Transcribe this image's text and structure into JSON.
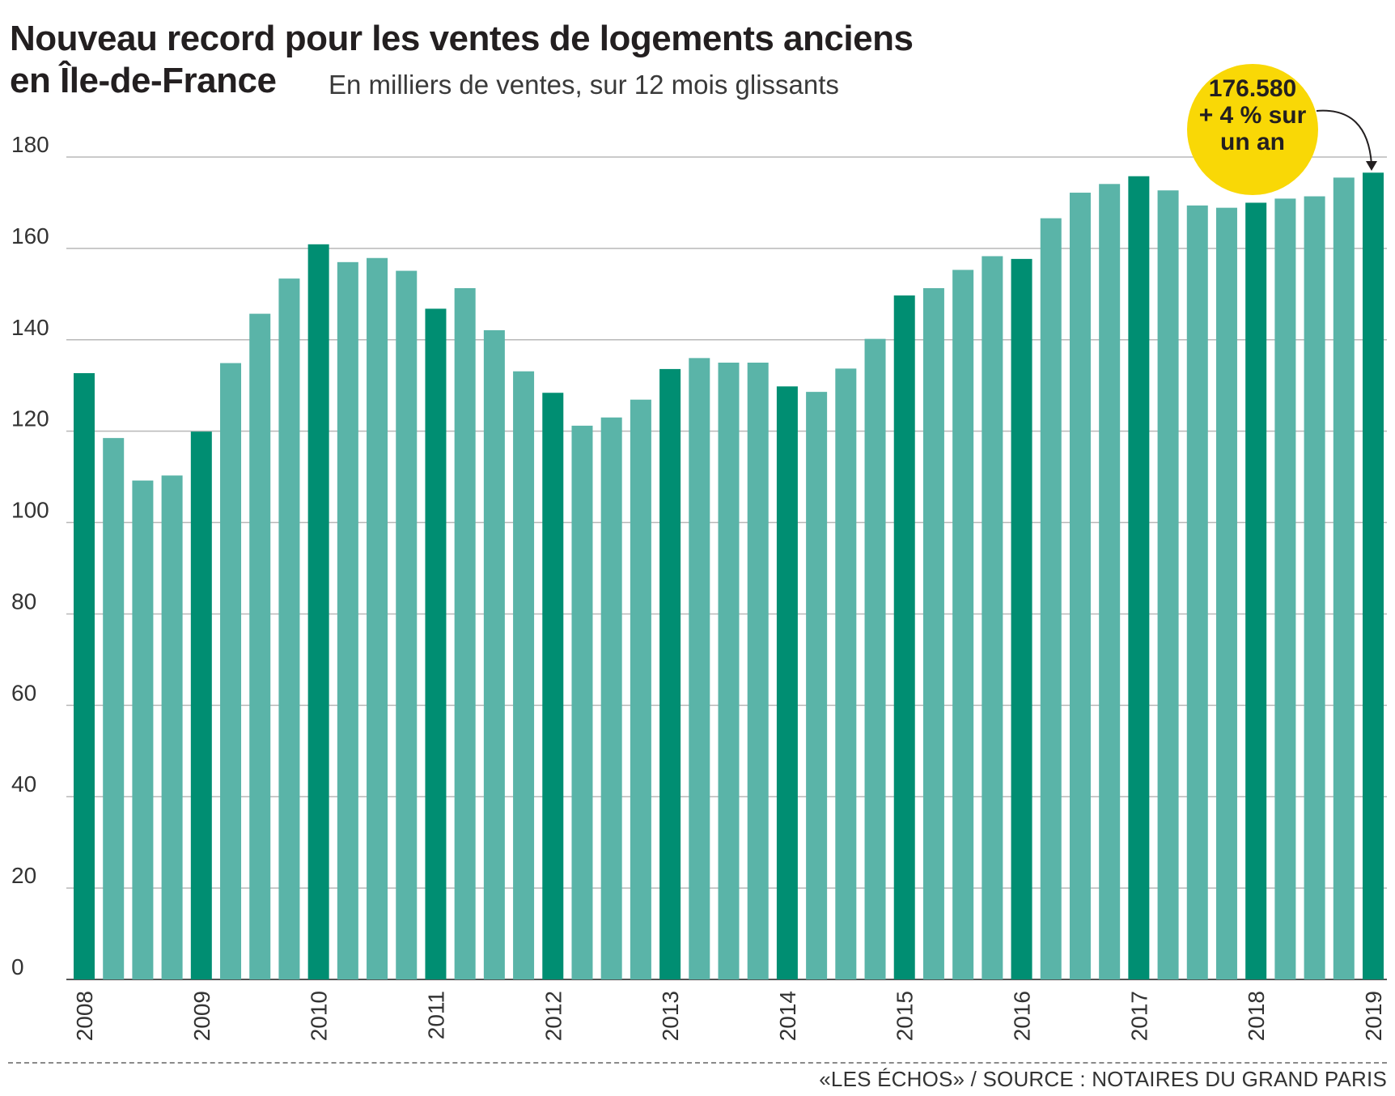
{
  "title": {
    "line1": "Nouveau record pour les ventes de logements anciens",
    "line2": "en Île-de-France"
  },
  "subtitle": "En milliers de ventes, sur 12 mois glissants",
  "callout": {
    "value": "176.580",
    "line2": "+ 4 % sur",
    "line3": "un an"
  },
  "footer": {
    "publication": "«LES ÉCHOS»",
    "source": "/ SOURCE : NOTAIRES DU GRAND PARIS"
  },
  "colors": {
    "bar_dark": "#008e72",
    "bar_light": "#5ab4a8",
    "callout": "#f9d806",
    "grid": "#b8b8b8"
  },
  "chart_data": {
    "type": "bar",
    "title": "Nouveau record pour les ventes de logements anciens en Île-de-France",
    "subtitle": "En milliers de ventes, sur 12 mois glissants",
    "ylim": [
      0,
      180
    ],
    "yticks": [
      0,
      20,
      40,
      60,
      80,
      100,
      120,
      140,
      160,
      180
    ],
    "grid": true,
    "x_tick_labels": [
      "2008",
      "2009",
      "2010",
      "2011",
      "2012",
      "2013",
      "2014",
      "2015",
      "2016",
      "2017",
      "2018",
      "2019"
    ],
    "year_bar_indices": [
      0,
      4,
      8,
      12,
      16,
      20,
      24,
      28,
      32,
      36,
      40,
      44
    ],
    "values": [
      132.7,
      118.5,
      109.2,
      110.3,
      119.9,
      134.9,
      145.7,
      153.4,
      160.9,
      157.0,
      157.9,
      155.1,
      146.8,
      151.3,
      142.1,
      133.1,
      128.4,
      121.2,
      123.0,
      126.9,
      133.6,
      136.0,
      135.0,
      135.0,
      129.8,
      128.6,
      133.7,
      140.2,
      149.7,
      151.3,
      155.3,
      158.3,
      157.7,
      166.6,
      172.2,
      174.1,
      175.8,
      172.7,
      169.4,
      168.9,
      170.0,
      170.9,
      171.4,
      175.5,
      176.58
    ]
  }
}
